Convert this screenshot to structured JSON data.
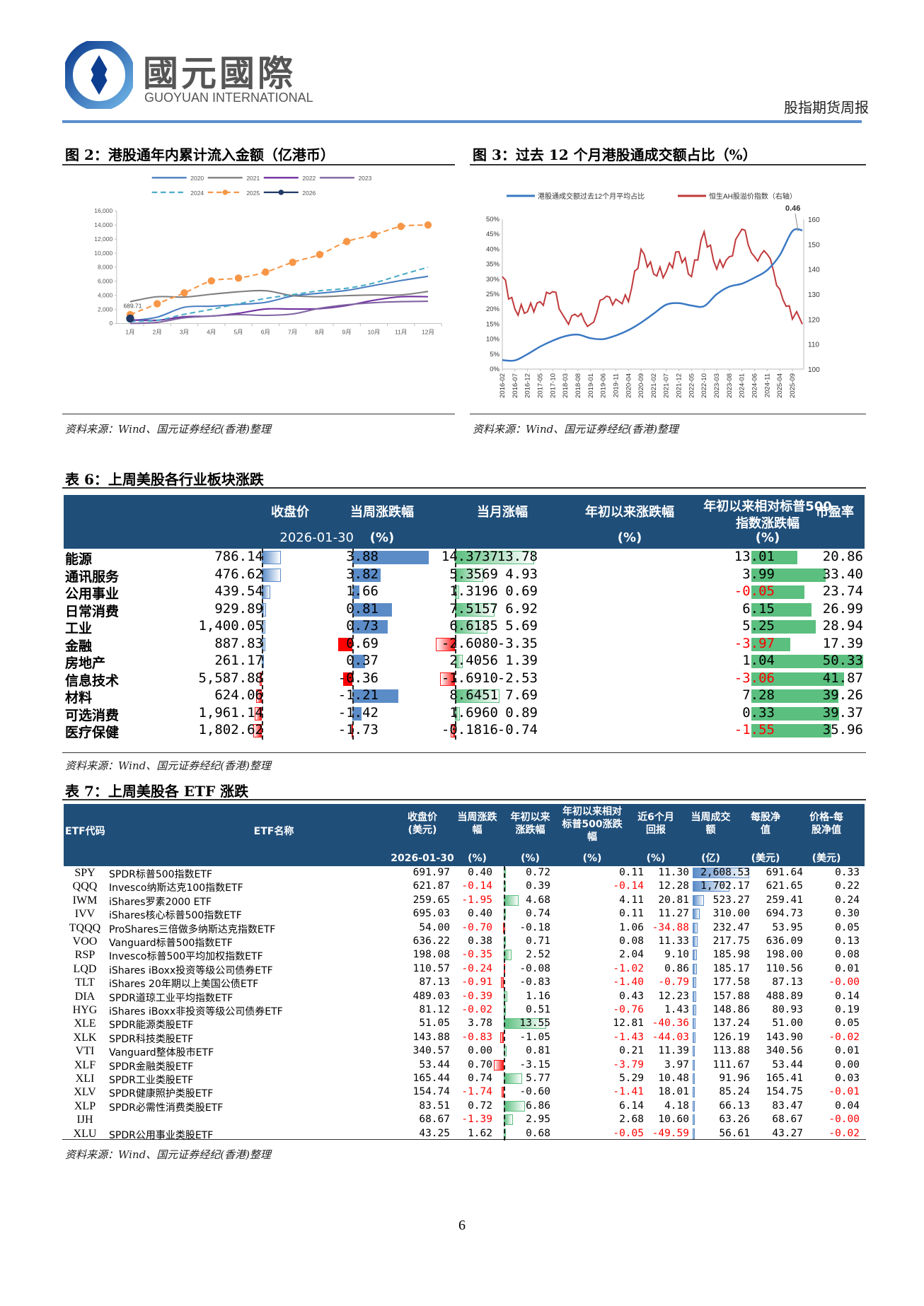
{
  "header": {
    "logo_cn": "國元國際",
    "logo_en": "GUOYUAN INTERNATIONAL",
    "report_name": "股指期货周报",
    "rule_color": "#5b8fd1"
  },
  "figure2": {
    "title": "图 2：港股通年内累计流入金额（亿港币）",
    "source": "资料来源：Wind、国元证券经纪(香港)整理"
  },
  "figure3": {
    "title": "图 3：过去 12 个月港股通成交额占比（%）",
    "source": "资料来源：Wind、国元证券经纪(香港)整理"
  },
  "chart_data": [
    {
      "type": "line",
      "title": "港股通年内累计流入金额（亿港币）",
      "xlabel": "",
      "ylabel": "",
      "categories": [
        "1月",
        "2月",
        "3月",
        "4月",
        "5月",
        "6月",
        "7月",
        "8月",
        "9月",
        "10月",
        "11月",
        "12月"
      ],
      "ylim": [
        0,
        16000
      ],
      "yticks": [
        0,
        2000,
        4000,
        6000,
        8000,
        10000,
        12000,
        14000,
        16000
      ],
      "ytick_labels": [
        "0",
        "2,000",
        "4,000",
        "6,000",
        "8,000",
        "10,000",
        "12,000",
        "14,000",
        "16,000"
      ],
      "legend_position": "top",
      "annotations": [
        {
          "label": "689.71",
          "x": "1月",
          "series": "2026"
        }
      ],
      "series": [
        {
          "name": "2020",
          "color": "#4a7fc1",
          "style": "solid",
          "values": [
            400,
            900,
            2300,
            2450,
            2700,
            3000,
            3900,
            4300,
            4700,
            5400,
            6100,
            6700
          ]
        },
        {
          "name": "2021",
          "color": "#7f7f7f",
          "style": "solid",
          "values": [
            3100,
            3800,
            3750,
            4150,
            4500,
            4650,
            3950,
            3800,
            3950,
            4050,
            4050,
            4550
          ]
        },
        {
          "name": "2022",
          "color": "#7030a0",
          "style": "solid",
          "values": [
            500,
            450,
            950,
            1050,
            1450,
            2050,
            2050,
            2100,
            2550,
            3300,
            3800,
            3800
          ]
        },
        {
          "name": "2023",
          "color": "#8064a2",
          "style": "solid",
          "values": [
            0,
            150,
            800,
            1050,
            1250,
            1150,
            1350,
            2150,
            2650,
            2950,
            3100,
            3150
          ]
        },
        {
          "name": "2024",
          "color": "#4bacc6",
          "style": "dashed",
          "values": [
            300,
            450,
            1300,
            2000,
            2800,
            3550,
            4100,
            4650,
            5000,
            5750,
            6900,
            8000
          ]
        },
        {
          "name": "2025",
          "color": "#f79646",
          "style": "dashed-marker",
          "values": [
            1250,
            2800,
            4350,
            6050,
            6450,
            7300,
            8700,
            9800,
            11650,
            12600,
            13800,
            14000
          ]
        },
        {
          "name": "2026",
          "color": "#1f3864",
          "style": "solid-marker",
          "values": [
            689.71
          ]
        }
      ]
    },
    {
      "type": "line",
      "title": "过去12个月港股通成交额占比（%）",
      "xlabel": "",
      "ylabel": "",
      "categories": [
        "2016-02",
        "2016-07",
        "2016-12",
        "2017-05",
        "2017-10",
        "2018-03",
        "2018-08",
        "2019-01",
        "2019-06",
        "2019-11",
        "2020-04",
        "2020-09",
        "2021-02",
        "2021-07",
        "2021-12",
        "2022-05",
        "2022-10",
        "2023-03",
        "2023-08",
        "2024-01",
        "2024-06",
        "2024-11",
        "2025-04",
        "2025-09"
      ],
      "ylim": [
        0,
        50
      ],
      "ytick_labels": [
        "0%",
        "5%",
        "10%",
        "15%",
        "20%",
        "25%",
        "30%",
        "35%",
        "40%",
        "45%",
        "50%"
      ],
      "y2lim": [
        100,
        160
      ],
      "y2ticks": [
        100,
        110,
        120,
        130,
        140,
        150,
        160
      ],
      "legend_position": "top",
      "annotations": [
        {
          "label": "0.46",
          "x": "2025-12",
          "series": "港股通成交额过去12个月平均占比"
        }
      ],
      "series": [
        {
          "name": "港股通成交额过去12个月平均占比",
          "axis": "left",
          "color": "#3a78c3",
          "values": [
            3,
            2.9,
            5,
            7.5,
            9.5,
            11,
            11.5,
            10.3,
            10,
            11.2,
            13,
            15.5,
            18.5,
            21.5,
            22,
            21.2,
            21,
            25,
            27.5,
            28.5,
            30.5,
            33,
            38,
            46
          ]
        },
        {
          "name": "恒生AH股溢价指数（右轴）",
          "axis": "right",
          "color": "#c0393b",
          "values": [
            137,
            124,
            123,
            127,
            131,
            120,
            121,
            118,
            128,
            128,
            127,
            148,
            138,
            139,
            147,
            137,
            155,
            140,
            145,
            156,
            145,
            146,
            132,
            120
          ]
        }
      ]
    }
  ],
  "table6": {
    "title": "表 6：上周美股各行业板块涨跌",
    "source": "资料来源：Wind、国元证券经纪(香港)整理",
    "headers": {
      "close": "收盘价",
      "close_date": "2026-01-30",
      "week": "当周涨跌幅",
      "week_unit": "(%)",
      "month": "当月涨幅",
      "ytd": "年初以来涨跌幅",
      "ytd_unit": "(%)",
      "rel_line1": "年初以来相对标普500",
      "rel_line2": "指数涨跌幅",
      "rel_unit": "(%)",
      "pe": "市盈率"
    },
    "rows": [
      {
        "name": "能源",
        "close": "786.14",
        "week": "3.88",
        "month": "14.3737",
        "ytd": "13.78",
        "rel": "13.01",
        "pe": "20.86"
      },
      {
        "name": "通讯服务",
        "close": "476.62",
        "week": "3.82",
        "month": "5.3569",
        "ytd": "4.93",
        "rel": "3.99",
        "pe": "33.40"
      },
      {
        "name": "公用事业",
        "close": "439.54",
        "week": "1.66",
        "month": "1.3196",
        "ytd": "0.69",
        "rel": "-0.05",
        "pe": "23.74"
      },
      {
        "name": "日常消费",
        "close": "929.89",
        "week": "0.81",
        "month": "7.5157",
        "ytd": "6.92",
        "rel": "6.15",
        "pe": "26.99"
      },
      {
        "name": "工业",
        "close": "1,400.05",
        "week": "0.73",
        "month": "6.6185",
        "ytd": "5.69",
        "rel": "5.25",
        "pe": "28.94"
      },
      {
        "name": "金融",
        "close": "887.83",
        "week": "0.69",
        "month": "-2.6080",
        "ytd": "-3.35",
        "rel": "-3.97",
        "pe": "17.39"
      },
      {
        "name": "房地产",
        "close": "261.17",
        "week": "0.37",
        "month": "2.4056",
        "ytd": "1.39",
        "rel": "1.04",
        "pe": "50.33"
      },
      {
        "name": "信息技术",
        "close": "5,587.88",
        "week": "-0.36",
        "month": "-1.6910",
        "ytd": "-2.53",
        "rel": "-3.06",
        "pe": "41.87"
      },
      {
        "name": "材料",
        "close": "624.06",
        "week": "-1.21",
        "month": "8.6451",
        "ytd": "7.69",
        "rel": "7.28",
        "pe": "39.26"
      },
      {
        "name": "可选消费",
        "close": "1,961.14",
        "week": "-1.42",
        "month": "1.6960",
        "ytd": "0.89",
        "rel": "0.33",
        "pe": "39.37"
      },
      {
        "name": "医疗保健",
        "close": "1,802.62",
        "week": "-1.73",
        "month": "-0.1816",
        "ytd": "-0.74",
        "rel": "-1.55",
        "pe": "35.96"
      }
    ]
  },
  "table7": {
    "title": "表 7：上周美股各 ETF 涨跌",
    "source": "资料来源：Wind、国元证券经纪(香港)整理",
    "headers": {
      "code": "ETF代码",
      "name": "ETF名称",
      "close": "收盘价\n(美元)",
      "close_date": "2026-01-30",
      "week": "当周涨跌\n幅",
      "week_unit": "(%)",
      "ytd": "年初以来\n涨跌幅",
      "ytd_unit": "(%)",
      "rel": "年初以来相对\n标普500涨跌\n幅",
      "rel_unit": "(%)",
      "r6m": "近6个月\n回报",
      "r6m_unit": "(%)",
      "turnover": "当周成交\n额",
      "turnover_unit": "(亿)",
      "nav": "每股净\n值",
      "nav_unit": "(美元)",
      "prem": "价格-每\n股净值",
      "prem_unit": "(美元)"
    },
    "rows": [
      {
        "code": "SPY",
        "name": "SPDR标普500指数ETF",
        "close": "691.97",
        "week": "0.40",
        "ytd": "0.72",
        "rel": "0.11",
        "r6m": "11.30",
        "turnover": "2,608.53",
        "nav": "691.64",
        "prem": "0.33"
      },
      {
        "code": "QQQ",
        "name": "Invesco纳斯达克100指数ETF",
        "close": "621.87",
        "week": "-0.14",
        "ytd": "0.39",
        "rel": "-0.14",
        "r6m": "12.28",
        "turnover": "1,702.17",
        "nav": "621.65",
        "prem": "0.22"
      },
      {
        "code": "IWM",
        "name": "iShares罗素2000 ETF",
        "close": "259.65",
        "week": "-1.95",
        "ytd": "4.68",
        "rel": "4.11",
        "r6m": "20.81",
        "turnover": "523.27",
        "nav": "259.41",
        "prem": "0.24"
      },
      {
        "code": "IVV",
        "name": "iShares核心标普500指数ETF",
        "close": "695.03",
        "week": "0.40",
        "ytd": "0.74",
        "rel": "0.11",
        "r6m": "11.27",
        "turnover": "310.00",
        "nav": "694.73",
        "prem": "0.30"
      },
      {
        "code": "TQQQ",
        "name": "ProShares三倍做多纳斯达克指数ETF",
        "close": "54.00",
        "week": "-0.70",
        "ytd": "-0.18",
        "rel": "1.06",
        "r6m": "-34.88",
        "turnover": "232.47",
        "nav": "53.95",
        "prem": "0.05"
      },
      {
        "code": "VOO",
        "name": "Vanguard标普500指数ETF",
        "close": "636.22",
        "week": "0.38",
        "ytd": "0.71",
        "rel": "0.08",
        "r6m": "11.33",
        "turnover": "217.75",
        "nav": "636.09",
        "prem": "0.13"
      },
      {
        "code": "RSP",
        "name": "Invesco标普500平均加权指数ETF",
        "close": "198.08",
        "week": "-0.35",
        "ytd": "2.52",
        "rel": "2.04",
        "r6m": "9.10",
        "turnover": "185.98",
        "nav": "198.00",
        "prem": "0.08"
      },
      {
        "code": "LQD",
        "name": "iShares iBoxx投资等级公司债券ETF",
        "close": "110.57",
        "week": "-0.24",
        "ytd": "-0.08",
        "rel": "-1.02",
        "r6m": "0.86",
        "turnover": "185.17",
        "nav": "110.56",
        "prem": "0.01"
      },
      {
        "code": "TLT",
        "name": "iShares 20年期以上美国公债ETF",
        "close": "87.13",
        "week": "-0.91",
        "ytd": "-0.83",
        "rel": "-1.40",
        "r6m": "-0.79",
        "turnover": "177.58",
        "nav": "87.13",
        "prem": "-0.00"
      },
      {
        "code": "DIA",
        "name": "SPDR道琼工业平均指数ETF",
        "close": "489.03",
        "week": "-0.39",
        "ytd": "1.16",
        "rel": "0.43",
        "r6m": "12.23",
        "turnover": "157.88",
        "nav": "488.89",
        "prem": "0.14"
      },
      {
        "code": "HYG",
        "name": "iShares iBoxx非投资等级公司债券ETF",
        "close": "81.12",
        "week": "-0.02",
        "ytd": "0.51",
        "rel": "-0.76",
        "r6m": "1.43",
        "turnover": "148.86",
        "nav": "80.93",
        "prem": "0.19"
      },
      {
        "code": "XLE",
        "name": "SPDR能源类股ETF",
        "close": "51.05",
        "week": "3.78",
        "ytd": "13.55",
        "rel": "12.81",
        "r6m": "-40.36",
        "turnover": "137.24",
        "nav": "51.00",
        "prem": "0.05"
      },
      {
        "code": "XLK",
        "name": "SPDR科技类股ETF",
        "close": "143.88",
        "week": "-0.83",
        "ytd": "-1.05",
        "rel": "-1.43",
        "r6m": "-44.03",
        "turnover": "126.19",
        "nav": "143.90",
        "prem": "-0.02"
      },
      {
        "code": "VTI",
        "name": "Vanguard整体股市ETF",
        "close": "340.57",
        "week": "0.00",
        "ytd": "0.81",
        "rel": "0.21",
        "r6m": "11.39",
        "turnover": "113.88",
        "nav": "340.56",
        "prem": "0.01"
      },
      {
        "code": "XLF",
        "name": "SPDR金融类股ETF",
        "close": "53.44",
        "week": "0.70",
        "ytd": "-3.15",
        "rel": "-3.79",
        "r6m": "3.97",
        "turnover": "111.67",
        "nav": "53.44",
        "prem": "0.00"
      },
      {
        "code": "XLI",
        "name": "SPDR工业类股ETF",
        "close": "165.44",
        "week": "0.74",
        "ytd": "5.77",
        "rel": "5.29",
        "r6m": "10.48",
        "turnover": "91.96",
        "nav": "165.41",
        "prem": "0.03"
      },
      {
        "code": "XLV",
        "name": "SPDR健康照护类股ETF",
        "close": "154.74",
        "week": "-1.74",
        "ytd": "-0.60",
        "rel": "-1.41",
        "r6m": "18.01",
        "turnover": "85.24",
        "nav": "154.75",
        "prem": "-0.01"
      },
      {
        "code": "XLP",
        "name": "SPDR必需性消费类股ETF",
        "close": "83.51",
        "week": "0.72",
        "ytd": "6.86",
        "rel": "6.14",
        "r6m": "4.18",
        "turnover": "66.13",
        "nav": "83.47",
        "prem": "0.04"
      },
      {
        "code": "IJH",
        "name": "",
        "close": "68.67",
        "week": "-1.39",
        "ytd": "2.95",
        "rel": "2.68",
        "r6m": "10.60",
        "turnover": "63.26",
        "nav": "68.67",
        "prem": "-0.00"
      },
      {
        "code": "XLU",
        "name": "SPDR公用事业类股ETF",
        "close": "43.25",
        "week": "1.62",
        "ytd": "0.68",
        "rel": "-0.05",
        "r6m": "-49.59",
        "turnover": "56.61",
        "nav": "43.27",
        "prem": "-0.02"
      }
    ]
  },
  "footer": {
    "page_number": "6"
  },
  "colors": {
    "table_header_bg": "#1f4e79",
    "bar_blue": "#5b8cc8",
    "bar_green": "#5bbf7f",
    "bar_red": "#ff1a1a",
    "negative_text": "#ff0000"
  }
}
